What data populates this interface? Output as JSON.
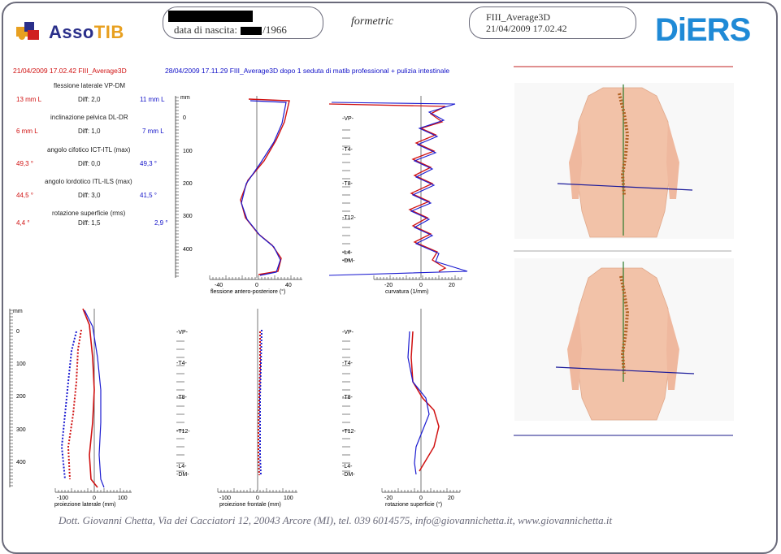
{
  "header": {
    "logo_asso": "Asso",
    "logo_tib": "TIB",
    "dob_label": "data di nascita:",
    "dob_year": "/1966",
    "app_name": "formetric",
    "file_name": "FIII_Average3D",
    "file_datetime": "21/04/2009 17.02.42",
    "brand": "DiERS"
  },
  "compare": {
    "left_header": "21/04/2009 17.02.42 FIII_Average3D",
    "right_header": "28/04/2009 17.11.29 FIII_Average3D  dopo 1 seduta di matib professional + pulizia intestinale",
    "left_color": "#d01010",
    "right_color": "#1010c8"
  },
  "metrics": [
    {
      "label": "flessione laterale VP-DM",
      "left": "13 mm  L",
      "diff": "Diff: 2,0",
      "right": "11 mm  L"
    },
    {
      "label": "inclinazione pelvica DL-DR",
      "left": "6 mm  L",
      "diff": "Diff: 1,0",
      "right": "7 mm  L"
    },
    {
      "label": "angolo cifotico ICT-ITL (max)",
      "left": "49,3 °",
      "diff": "Diff: 0,0",
      "right": "49,3 °"
    },
    {
      "label": "angolo lordotico ITL-ILS (max)",
      "left": "44,5 °",
      "diff": "Diff: 3,0",
      "right": "41,5 °"
    },
    {
      "label": "rotazione superficie (rms)",
      "left": "4,4 °",
      "diff": "Diff: 1,5",
      "right": "2,9 °"
    }
  ],
  "axis": {
    "unit": "mm",
    "ticks": [
      "0",
      "100",
      "200",
      "300",
      "400"
    ],
    "vertebrae": [
      "-VP-",
      "-T4-",
      "-T8-",
      "-T12-",
      "-L4-",
      "-DM-"
    ]
  },
  "plots": {
    "sagittal": {
      "xlabel": "flessione antero-posteriore (°)",
      "ticks": [
        "-40",
        "0",
        "40"
      ]
    },
    "curvature": {
      "xlabel": "curvatura (1/mm)",
      "ticks": [
        "-20",
        "0",
        "20"
      ]
    },
    "lateral": {
      "xlabel": "proiezione laterale (mm)",
      "ticks": [
        "-100",
        "0",
        "100"
      ]
    },
    "frontal": {
      "xlabel": "proiezione frontale (mm)",
      "ticks": [
        "-100",
        "0",
        "100"
      ]
    },
    "surface": {
      "xlabel": "rotazione superficie (°)",
      "ticks": [
        "-20",
        "0",
        "20"
      ]
    }
  },
  "footer": "Dott. Giovanni Chetta,  Via dei Cacciatori 12, 20043 Arcore (MI),  tel. 039 6014575,  info@giovannichetta.it,  www.giovannichetta.it"
}
